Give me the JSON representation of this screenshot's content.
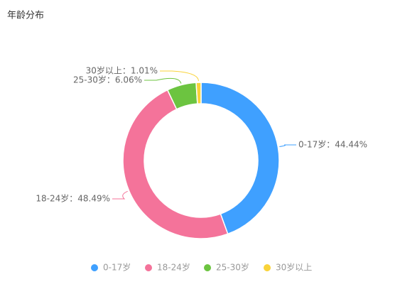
{
  "chart_data": {
    "type": "donut",
    "title": "年龄分布",
    "categories": [
      "0-17岁",
      "18-24岁",
      "25-30岁",
      "30岁以上"
    ],
    "values": [
      44.44,
      48.49,
      6.06,
      1.01
    ],
    "value_labels": [
      "0-17岁：44.44%",
      "18-24岁：48.49%",
      "25-30岁：6.06%",
      "30岁以上：1.01%"
    ],
    "colors": [
      "#3fa0ff",
      "#f4739a",
      "#6cc440",
      "#f9d33a"
    ],
    "legend": "bottom"
  }
}
